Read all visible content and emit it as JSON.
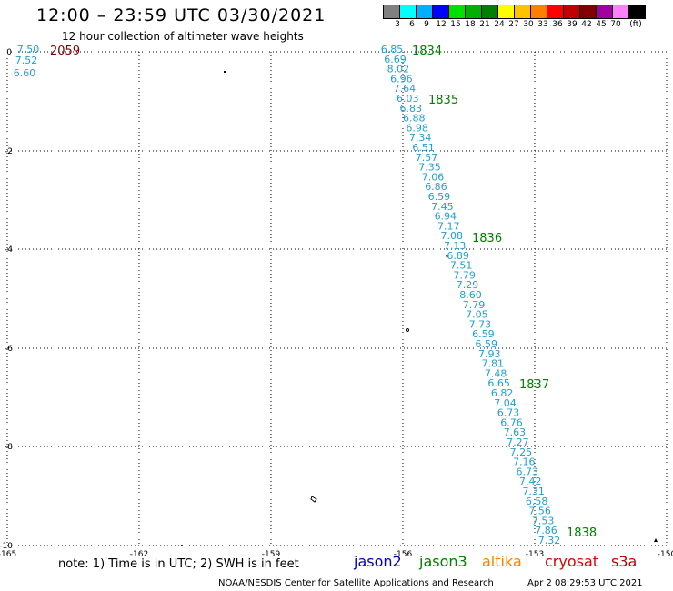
{
  "header": {
    "title": "12:00 – 23:59 UTC 03/30/2021",
    "subtitle": "12 hour collection of altimeter wave heights"
  },
  "color_scale": {
    "unit": "(ft)",
    "labels": [
      "3",
      "6",
      "9",
      "12",
      "15",
      "18",
      "21",
      "24",
      "27",
      "30",
      "33",
      "36",
      "39",
      "42",
      "45",
      "70"
    ],
    "colors": [
      "#808080",
      "#00ffff",
      "#00b0ff",
      "#0000ff",
      "#00e000",
      "#00b000",
      "#008000",
      "#ffff00",
      "#ffc000",
      "#ff8000",
      "#ff0000",
      "#c00000",
      "#800000",
      "#a000a0",
      "#ff80ff",
      "#000000"
    ]
  },
  "map": {
    "x_ticks": [
      "-165",
      "-162",
      "-159",
      "-156",
      "-153",
      "-150"
    ],
    "y_ticks": [
      "0",
      "-2",
      "-4",
      "-6",
      "-8",
      "-10"
    ],
    "track_color": "#20a0d0",
    "track_values": [
      "6.85",
      "6.69",
      "8.02",
      "6.96",
      "7.64",
      "6.03",
      "6.83",
      "6.88",
      "6.98",
      "7.34",
      "6.51",
      "7.57",
      "7.35",
      "7.06",
      "6.86",
      "6.59",
      "7.45",
      "6.94",
      "7.17",
      "7.08",
      "7.13",
      "6.89",
      "7.51",
      "7.79",
      "7.29",
      "8.60",
      "7.79",
      "7.05",
      "7.73",
      "6.59",
      "6.59",
      "7.93",
      "7.81",
      "7.48",
      "6.65",
      "6.82",
      "7.04",
      "6.73",
      "6.76",
      "7.63",
      "7.27",
      "7.25",
      "7.16",
      "6.73",
      "7.42",
      "7.31",
      "6.58",
      "7.56",
      "7.53",
      "7.86",
      "7.32"
    ],
    "left_values": [
      "7.50",
      "7.52",
      "6.60"
    ],
    "time_labels": [
      {
        "text": "1834",
        "color": "#008000"
      },
      {
        "text": "1835",
        "color": "#008000"
      },
      {
        "text": "1836",
        "color": "#008000"
      },
      {
        "text": "1837",
        "color": "#008000"
      },
      {
        "text": "1838",
        "color": "#008000"
      }
    ],
    "left_time": {
      "text": "2059",
      "color": "#800000"
    }
  },
  "notes": {
    "note": "note:  1) Time is in UTC;  2) SWH is in feet",
    "satellites": [
      {
        "name": "jason2",
        "color": "#0000c0"
      },
      {
        "name": "jason3",
        "color": "#008000"
      },
      {
        "name": "altika",
        "color": "#ff8000"
      },
      {
        "name": "cryosat",
        "color": "#e00000"
      },
      {
        "name": "s3a",
        "color": "#c00000"
      }
    ]
  },
  "footer": {
    "credit": "NOAA/NESDIS Center for Satellite Applications and Research",
    "timestamp": "Apr  2 08:29:53 UTC 2021"
  }
}
